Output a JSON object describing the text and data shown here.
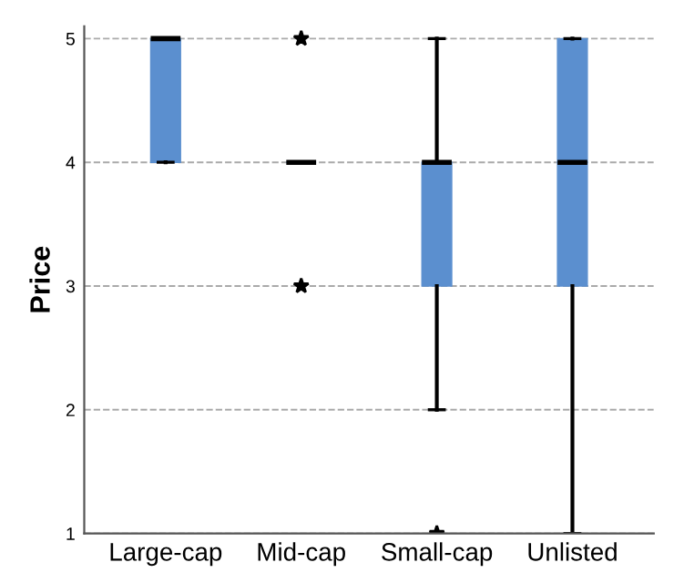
{
  "chart_data": {
    "type": "box",
    "ylabel": "Price",
    "categories": [
      "Large-cap",
      "Mid-cap",
      "Small-cap",
      "Unlisted"
    ],
    "boxes": [
      {
        "low": 4,
        "q1": 4,
        "median": 5,
        "q3": 5,
        "high": 5
      },
      {
        "low": 4,
        "q1": 4,
        "median": 4,
        "q3": 4,
        "high": 4,
        "outliers": [
          5,
          3
        ]
      },
      {
        "low": 2,
        "q1": 3,
        "median": 4,
        "q3": 4,
        "high": 5,
        "outliers": [
          1
        ]
      },
      {
        "low": 1,
        "q1": 3,
        "median": 4,
        "q3": 5,
        "high": 5
      }
    ],
    "color": "#5b8fcf",
    "ylim": [
      1,
      5.1
    ],
    "yticks": [
      1,
      2,
      3,
      4,
      5
    ],
    "grid": "y"
  }
}
